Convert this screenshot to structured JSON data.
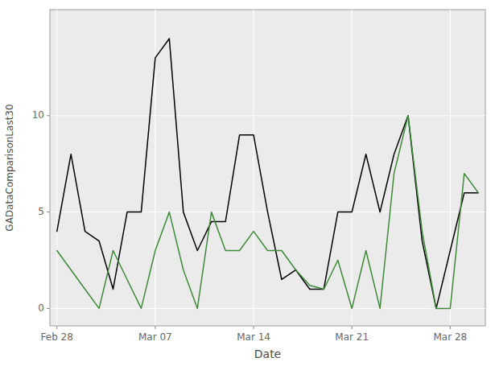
{
  "chart_data": {
    "type": "line",
    "xlabel": "Date",
    "ylabel": "GADataComparisonLast30",
    "categories": [
      "Feb 28",
      null,
      null,
      null,
      null,
      null,
      null,
      "Mar 07",
      null,
      null,
      null,
      null,
      null,
      null,
      "Mar 14",
      null,
      null,
      null,
      null,
      null,
      null,
      "Mar 21",
      null,
      null,
      null,
      null,
      null,
      null,
      "Mar 28",
      null,
      null
    ],
    "series": [
      {
        "color": "#000000",
        "values": [
          4,
          8,
          4,
          3.5,
          1,
          5,
          5,
          13,
          14,
          5,
          3,
          4.5,
          4.5,
          9,
          9,
          5,
          1.5,
          2,
          1,
          1,
          5,
          5,
          8,
          5,
          8,
          10,
          3.5,
          0,
          3,
          6,
          6
        ]
      },
      {
        "color": "#3D8B37",
        "values": [
          3,
          2,
          1,
          0,
          3,
          1.5,
          0,
          3,
          5,
          2,
          0,
          5,
          3,
          3,
          4,
          3,
          3,
          2,
          1.2,
          1,
          2.5,
          0,
          3,
          0,
          7,
          10,
          4,
          0,
          0,
          7,
          6
        ]
      }
    ],
    "ylim": [
      -0.9,
      15.5
    ],
    "yticks": [
      0,
      5,
      10
    ],
    "grid": true
  }
}
